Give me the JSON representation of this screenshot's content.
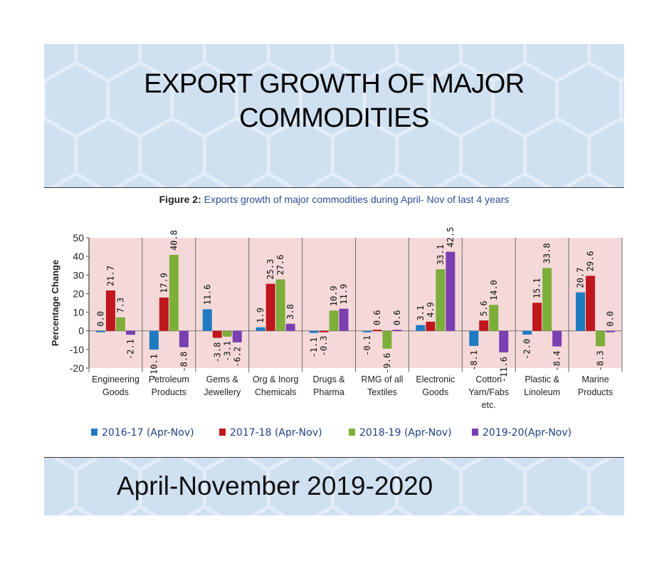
{
  "title_line1": "EXPORT GROWTH OF MAJOR",
  "title_line2": "COMMODITIES",
  "figure_label": "Figure 2:",
  "figure_caption": "Exports growth of major commodities during April- Nov of last 4 years",
  "subtitle": "April-November 2019-2020",
  "colors": {
    "card_background": "#cfe0f1",
    "plot_background": "#f5d9d9",
    "series": [
      "#1f7bc1",
      "#c0161d",
      "#7dae3a",
      "#7a3fb0"
    ]
  },
  "chart_data": {
    "type": "bar",
    "title": "Exports growth of major commodities during April- Nov of last 4 years",
    "ylabel": "Percentage Change",
    "xlabel": "",
    "ylim": [
      -20,
      50
    ],
    "yticks": [
      50,
      40,
      30,
      20,
      10,
      0,
      -10,
      -20
    ],
    "legend_position": "bottom",
    "grid": false,
    "categories": [
      [
        "Engineering",
        "Goods"
      ],
      [
        "Petroleum",
        "Products"
      ],
      [
        "Gems &",
        "Jewellery"
      ],
      [
        "Org & Inorg",
        "Chemicals"
      ],
      [
        "Drugs &",
        "Pharma"
      ],
      [
        "RMG of all",
        "Textiles"
      ],
      [
        "Electronic",
        "Goods"
      ],
      [
        "Cotton",
        "Yarn/Fabs",
        "etc."
      ],
      [
        "Plastic &",
        "Linoleum"
      ],
      [
        "Marine",
        "Products"
      ]
    ],
    "series": [
      {
        "name": "2016-17 (Apr-Nov)",
        "values": [
          0.0,
          -10.1,
          11.6,
          1.9,
          -1.1,
          -0.1,
          3.1,
          -8.1,
          -2.0,
          20.7
        ]
      },
      {
        "name": "2017-18 (Apr-Nov)",
        "values": [
          21.7,
          17.9,
          -3.8,
          25.3,
          -0.3,
          0.6,
          4.9,
          5.6,
          15.1,
          29.6
        ]
      },
      {
        "name": "2018-19 (Apr-Nov)",
        "values": [
          7.3,
          40.8,
          -3.1,
          27.6,
          10.9,
          -9.6,
          33.1,
          14.0,
          33.8,
          -8.3
        ]
      },
      {
        "name": "2019-20(Apr-Nov)",
        "values": [
          -2.1,
          -8.8,
          -6.2,
          3.8,
          11.9,
          0.6,
          42.5,
          -11.6,
          -8.4,
          0.0
        ]
      }
    ],
    "data_labels": [
      [
        "0.0",
        "21.7",
        "7.3",
        "-2.1"
      ],
      [
        "-10.1",
        "17.9",
        "40.8",
        "-8.8"
      ],
      [
        "11.6",
        "-3.8",
        "-3.1",
        "-6.2"
      ],
      [
        "1.9",
        "25.3",
        "27.6",
        "3.8"
      ],
      [
        "-1.1",
        "-0.3",
        "10.9",
        "11.9"
      ],
      [
        "-0.1",
        "0.6",
        "-9.6",
        "0.6"
      ],
      [
        "3.1",
        "4.9",
        "33.1",
        "42.5"
      ],
      [
        "-8.1",
        "5.6",
        "14.0",
        "-11.6"
      ],
      [
        "-2.0",
        "15.1",
        "33.8",
        "-8.4"
      ],
      [
        "20.7",
        "29.6",
        "-8.3",
        "0.0"
      ]
    ]
  }
}
